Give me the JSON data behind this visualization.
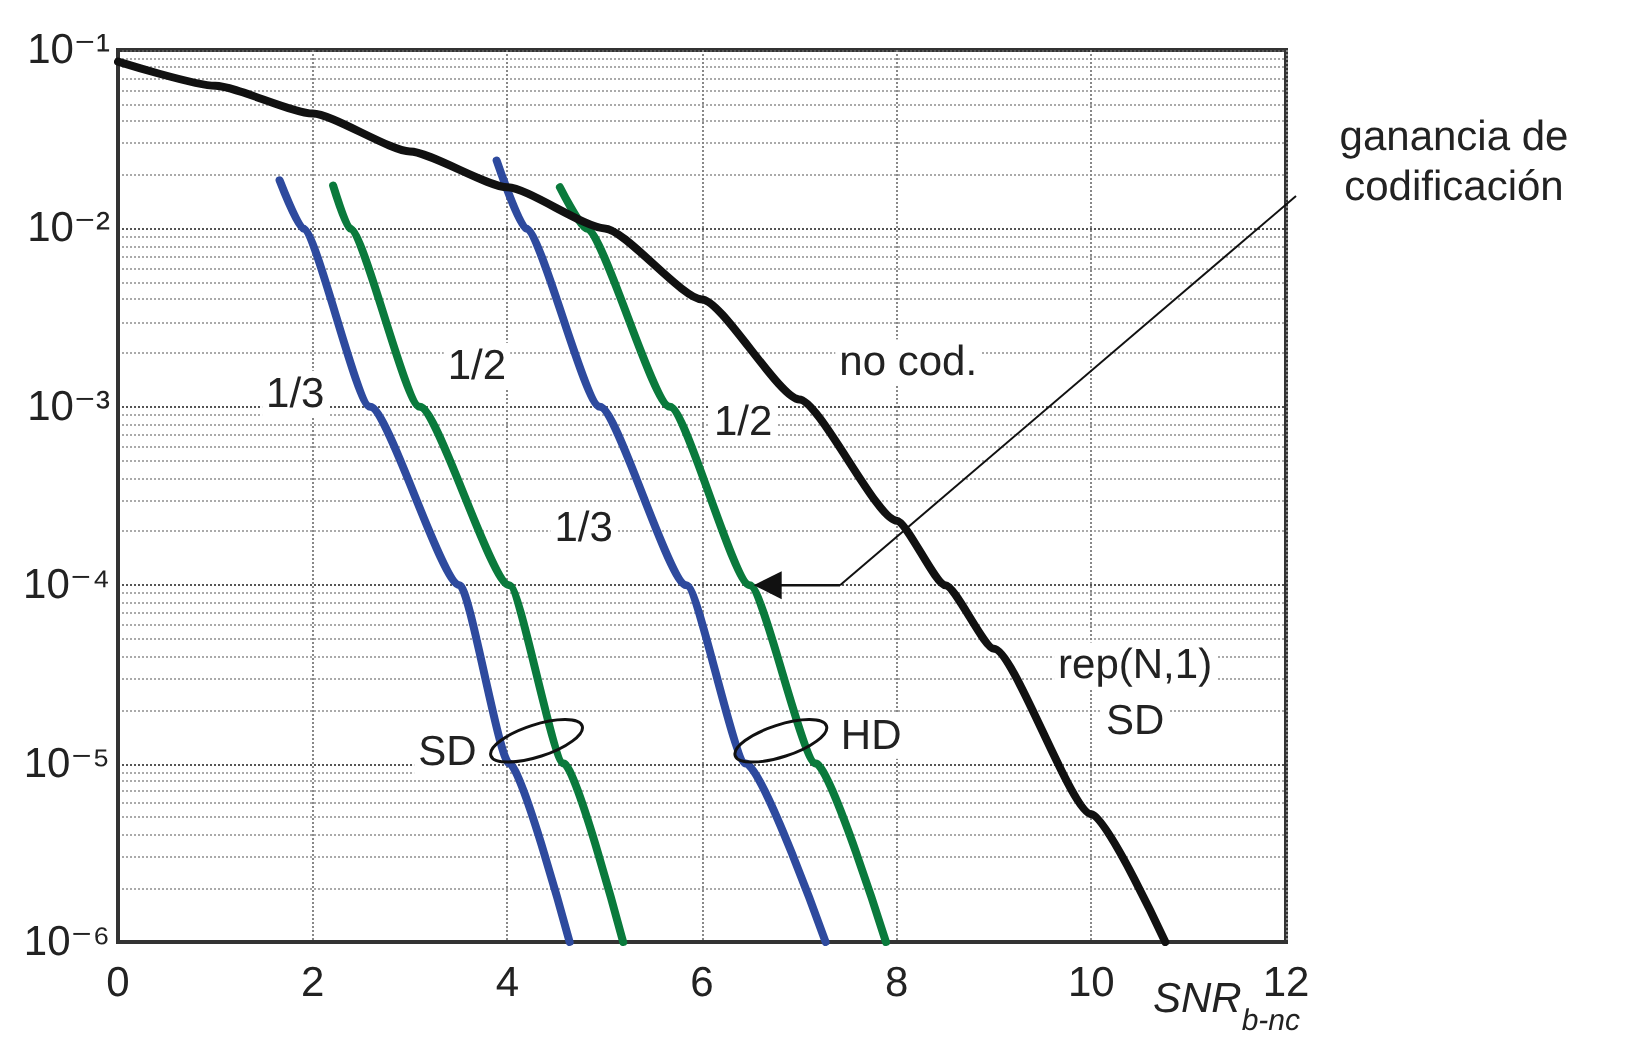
{
  "chart_data": {
    "type": "line",
    "xlabel": "SNR$_{b-nc}$",
    "xlim": [
      0,
      12
    ],
    "xticks": [
      0,
      2,
      4,
      6,
      8,
      10,
      12
    ],
    "log": true,
    "ylim": [
      1e-06,
      0.1
    ],
    "yticks": [
      {
        "value": 0.1,
        "label": "10⁻¹"
      },
      {
        "value": 0.01,
        "label": "10⁻²"
      },
      {
        "value": 0.001,
        "label": "10⁻³"
      },
      {
        "value": 0.0001,
        "label": "10⁻⁴"
      },
      {
        "value": 1e-05,
        "label": "10⁻⁵"
      },
      {
        "value": 1e-06,
        "label": "10⁻⁶"
      }
    ],
    "grid": true,
    "legend": false,
    "marker": "none",
    "line_style": "solid",
    "series": [
      {
        "name": "1/3",
        "color": "#2e4a9e",
        "x": [
          1.66,
          1.9,
          2.59,
          3.51,
          4.02,
          4.64
        ],
        "values": [
          0.0186,
          0.01,
          0.001,
          0.0001,
          1e-05,
          1e-06
        ]
      },
      {
        "name": "1/2",
        "color": "#0a7a3c",
        "x": [
          2.21,
          2.38,
          3.1,
          4.02,
          4.58,
          5.19
        ],
        "values": [
          0.0174,
          0.01,
          0.001,
          0.0001,
          1e-05,
          1e-06
        ]
      },
      {
        "name": "1/3",
        "color": "#2e4a9e",
        "x": [
          3.89,
          4.19,
          4.95,
          5.84,
          6.45,
          7.27
        ],
        "values": [
          0.024,
          0.01,
          0.001,
          0.0001,
          1e-05,
          1e-06
        ]
      },
      {
        "name": "1/2",
        "color": "#0a7a3c",
        "x": [
          4.54,
          4.81,
          5.67,
          6.49,
          7.17,
          7.89
        ],
        "values": [
          0.017,
          0.01,
          0.001,
          0.0001,
          1e-05,
          1e-06
        ]
      },
      {
        "name": "no cod.",
        "color": "#111111",
        "x": [
          0,
          1,
          2,
          3,
          4,
          5,
          6,
          7,
          8,
          8.5,
          9,
          10,
          10.76
        ],
        "values": [
          0.086,
          0.063,
          0.044,
          0.027,
          0.017,
          0.01,
          0.004,
          0.0011,
          0.00023,
          0.0001,
          4.4e-05,
          5.2e-06,
          1e-06
        ]
      }
    ],
    "annotations": [
      "SD",
      "HD",
      "rep(N,1) SD",
      "ganancia de codificación"
    ]
  }
}
